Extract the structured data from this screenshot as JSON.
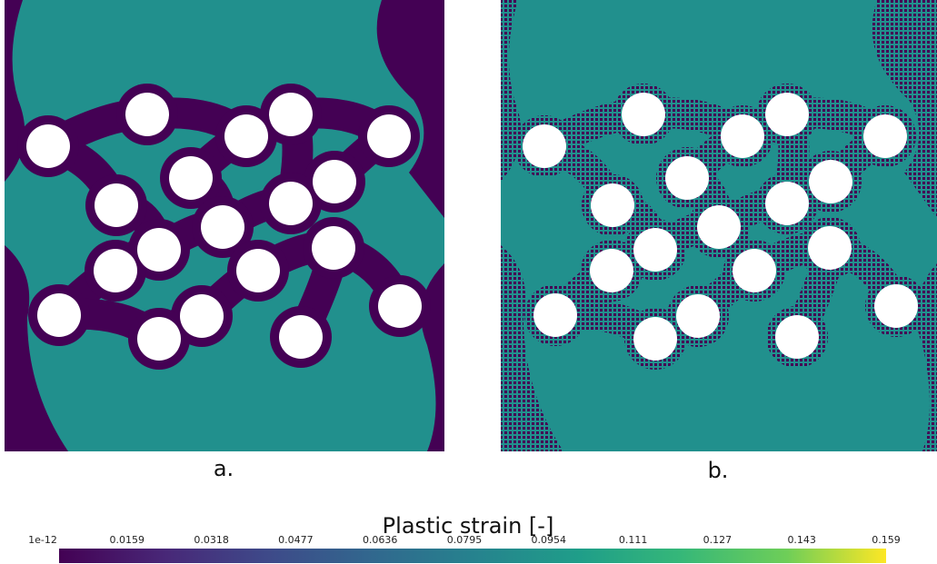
{
  "panels": [
    {
      "label": "a."
    },
    {
      "label": "b."
    }
  ],
  "colorbar": {
    "title": "Plastic strain [-]",
    "ticks": [
      "1e-12",
      "0.0159",
      "0.0318",
      "0.0477",
      "0.0636",
      "0.0795",
      "0.0954",
      "0.111",
      "0.127",
      "0.143",
      "0.159"
    ]
  }
}
